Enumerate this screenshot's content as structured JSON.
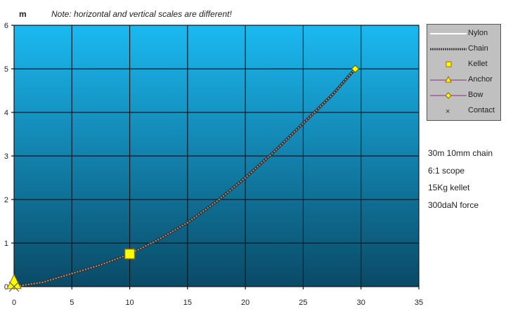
{
  "chart_data": {
    "type": "line",
    "title": "Note: horizontal and vertical scales are different!",
    "ylabel": "m",
    "xlabel": "",
    "xlim": [
      0,
      35
    ],
    "ylim": [
      0,
      6
    ],
    "xticks": [
      "0",
      "5",
      "10",
      "15",
      "20",
      "25",
      "30",
      "35"
    ],
    "yticks": [
      "0",
      "1",
      "2",
      "3",
      "4",
      "5",
      "6"
    ],
    "grid": true,
    "legend_position": "right",
    "series": [
      {
        "name": "Nylon",
        "points": []
      },
      {
        "name": "Chain",
        "points": [
          [
            0,
            0
          ],
          [
            2.5,
            0.1
          ],
          [
            5,
            0.3
          ],
          [
            7.5,
            0.5
          ],
          [
            10,
            0.75
          ],
          [
            12.5,
            1.08
          ],
          [
            15,
            1.47
          ],
          [
            17.5,
            1.95
          ],
          [
            20,
            2.5
          ],
          [
            22.5,
            3.1
          ],
          [
            25,
            3.75
          ],
          [
            27.5,
            4.4
          ],
          [
            29.5,
            5.0
          ]
        ]
      },
      {
        "name": "Kellet",
        "points": [
          [
            10,
            0.75
          ]
        ]
      },
      {
        "name": "Anchor",
        "points": [
          [
            0,
            0.05
          ]
        ]
      },
      {
        "name": "Bow",
        "points": [
          [
            29.5,
            5.0
          ]
        ]
      },
      {
        "name": "Contact",
        "points": [
          [
            0,
            0
          ]
        ]
      }
    ],
    "notes": [
      "30m 10mm chain",
      "6:1 scope",
      "15Kg kellet",
      "300daN force"
    ],
    "colors": {
      "bg_top": "#1bb9f1",
      "bg_bottom": "#0a4a66",
      "marker": "#ffff00",
      "chain": "#555555"
    }
  }
}
